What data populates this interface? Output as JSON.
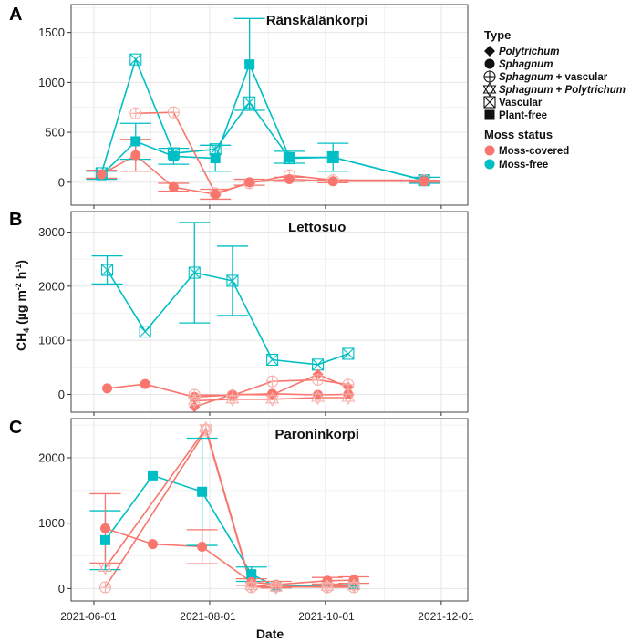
{
  "figure": {
    "ylabel_main": "CH",
    "ylabel_sub": "4",
    "ylabel_rest": " (µg m",
    "ylabel_exp1": "-2",
    "ylabel_mid": " h",
    "ylabel_exp2": "-1",
    "ylabel_close": ")",
    "xlabel": "Date",
    "x_ticks": [
      "2021-06-01",
      "2021-08-01",
      "2021-10-01",
      "2021-12-01"
    ]
  },
  "legend": {
    "type_title": "Type",
    "type_items": [
      {
        "id": "polytrichum",
        "parts": [
          {
            "t": "Polytrichum",
            "i": true
          }
        ]
      },
      {
        "id": "sphagnum",
        "parts": [
          {
            "t": "Sphagnum",
            "i": true
          }
        ]
      },
      {
        "id": "sphagnum-vascular",
        "parts": [
          {
            "t": "Sphagnum",
            "i": true
          },
          {
            "t": " + vascular",
            "i": false
          }
        ]
      },
      {
        "id": "sphagnum-polytrichum",
        "parts": [
          {
            "t": "Sphagnum",
            "i": true
          },
          {
            "t": " + ",
            "i": false
          },
          {
            "t": "Polytrichum",
            "i": true
          }
        ]
      },
      {
        "id": "vascular",
        "parts": [
          {
            "t": "Vascular",
            "i": false
          }
        ]
      },
      {
        "id": "plant-free",
        "parts": [
          {
            "t": "Plant-free",
            "i": false
          }
        ]
      }
    ],
    "moss_title": "Moss status",
    "moss_items": [
      {
        "label": "Moss-covered",
        "color": "#F8766D"
      },
      {
        "label": "Moss-free",
        "color": "#00BFC4"
      }
    ]
  },
  "colors": {
    "moss_covered": "#F8766D",
    "moss_free": "#00BFC4",
    "light_covered": "#F6B0AA",
    "light_free": "#7FD9DC"
  },
  "chart_data": [
    {
      "type": "line",
      "panel": "A",
      "title": "Ränskälänkorpi",
      "xlim": [
        "2021-05-20",
        "2021-12-15"
      ],
      "ylim": [
        -230,
        1780
      ],
      "y_ticks": [
        0,
        500,
        1000,
        1500
      ],
      "series": [
        {
          "type": "vascular",
          "status": "Moss-free",
          "points": [
            {
              "x": "2021-06-05",
              "y": 90
            },
            {
              "x": "2021-06-23",
              "y": 1230
            },
            {
              "x": "2021-07-13",
              "y": 290
            },
            {
              "x": "2021-08-04",
              "y": 330
            },
            {
              "x": "2021-08-22",
              "y": 800
            },
            {
              "x": "2021-09-12",
              "y": 240
            },
            {
              "x": "2021-10-05",
              "y": 250
            },
            {
              "x": "2021-11-22",
              "y": 20
            }
          ]
        },
        {
          "type": "plant-free",
          "status": "Moss-free",
          "points": [
            {
              "x": "2021-06-05",
              "y": 70,
              "err": 40
            },
            {
              "x": "2021-06-23",
              "y": 410,
              "err": 180
            },
            {
              "x": "2021-07-13",
              "y": 260,
              "err": 80
            },
            {
              "x": "2021-08-04",
              "y": 240,
              "err": 130
            },
            {
              "x": "2021-08-22",
              "y": 1180,
              "err": 460
            },
            {
              "x": "2021-09-12",
              "y": 250,
              "err": 60
            },
            {
              "x": "2021-10-05",
              "y": 250,
              "err": 140
            },
            {
              "x": "2021-11-22",
              "y": 20,
              "err": 30
            }
          ]
        },
        {
          "type": "sphagnum-vascular",
          "status": "Moss-covered",
          "points": [
            {
              "x": "2021-06-23",
              "y": 690
            },
            {
              "x": "2021-07-13",
              "y": 700
            },
            {
              "x": "2021-08-04",
              "y": -110
            },
            {
              "x": "2021-08-22",
              "y": -10
            },
            {
              "x": "2021-09-12",
              "y": 70
            },
            {
              "x": "2021-10-05",
              "y": 20
            },
            {
              "x": "2021-11-22",
              "y": 20
            }
          ]
        },
        {
          "type": "sphagnum",
          "status": "Moss-covered",
          "points": [
            {
              "x": "2021-06-05",
              "y": 80,
              "err": 40
            },
            {
              "x": "2021-06-23",
              "y": 270,
              "err": 160
            },
            {
              "x": "2021-07-13",
              "y": -50,
              "err": 40
            },
            {
              "x": "2021-08-04",
              "y": -120,
              "err": 50
            },
            {
              "x": "2021-08-22",
              "y": 0,
              "err": 30
            },
            {
              "x": "2021-09-12",
              "y": 30,
              "err": 20
            },
            {
              "x": "2021-10-05",
              "y": 10,
              "err": 15
            },
            {
              "x": "2021-11-22",
              "y": 10,
              "err": 10
            }
          ]
        }
      ]
    },
    {
      "type": "line",
      "panel": "B",
      "title": "Lettosuo",
      "xlim": [
        "2021-05-20",
        "2021-12-15"
      ],
      "ylim": [
        -330,
        3380
      ],
      "y_ticks": [
        0,
        1000,
        2000,
        3000
      ],
      "series": [
        {
          "type": "vascular",
          "status": "Moss-free",
          "points": [
            {
              "x": "2021-06-08",
              "y": 2300,
              "err": 260
            },
            {
              "x": "2021-06-28",
              "y": 1160
            },
            {
              "x": "2021-07-24",
              "y": 2250,
              "err": 930
            },
            {
              "x": "2021-08-13",
              "y": 2100,
              "err": 640
            },
            {
              "x": "2021-09-03",
              "y": 640
            },
            {
              "x": "2021-09-27",
              "y": 550
            },
            {
              "x": "2021-10-13",
              "y": 750
            }
          ]
        },
        {
          "type": "sphagnum",
          "status": "Moss-covered",
          "points": [
            {
              "x": "2021-06-08",
              "y": 110
            },
            {
              "x": "2021-06-28",
              "y": 190
            },
            {
              "x": "2021-07-24",
              "y": -50
            },
            {
              "x": "2021-08-13",
              "y": -10
            },
            {
              "x": "2021-09-03",
              "y": 10
            },
            {
              "x": "2021-09-27",
              "y": -10
            },
            {
              "x": "2021-10-13",
              "y": 0
            }
          ]
        },
        {
          "type": "polytrichum",
          "status": "Moss-covered",
          "points": [
            {
              "x": "2021-07-24",
              "y": -230
            },
            {
              "x": "2021-08-13",
              "y": 0
            },
            {
              "x": "2021-09-03",
              "y": -10
            },
            {
              "x": "2021-09-27",
              "y": 370
            },
            {
              "x": "2021-10-13",
              "y": 130
            }
          ]
        },
        {
          "type": "sphagnum-vascular",
          "status": "Moss-covered",
          "points": [
            {
              "x": "2021-07-24",
              "y": -10
            },
            {
              "x": "2021-08-13",
              "y": -20
            },
            {
              "x": "2021-09-03",
              "y": 240
            },
            {
              "x": "2021-09-27",
              "y": 270
            },
            {
              "x": "2021-10-13",
              "y": 180
            }
          ]
        },
        {
          "type": "sphagnum-polytrichum",
          "status": "Moss-covered",
          "points": [
            {
              "x": "2021-07-24",
              "y": -120
            },
            {
              "x": "2021-08-13",
              "y": -90
            },
            {
              "x": "2021-09-03",
              "y": -90
            },
            {
              "x": "2021-09-27",
              "y": -60
            },
            {
              "x": "2021-10-13",
              "y": -60
            }
          ]
        }
      ]
    },
    {
      "type": "line",
      "panel": "C",
      "title": "Paroninkorpi",
      "xlim": [
        "2021-05-20",
        "2021-12-15"
      ],
      "ylim": [
        -190,
        2600
      ],
      "y_ticks": [
        0,
        1000,
        2000
      ],
      "series": [
        {
          "type": "plant-free",
          "status": "Moss-free",
          "points": [
            {
              "x": "2021-06-07",
              "y": 740,
              "err": 450
            },
            {
              "x": "2021-07-02",
              "y": 1730
            },
            {
              "x": "2021-07-28",
              "y": 1480,
              "err": 820
            },
            {
              "x": "2021-08-23",
              "y": 220,
              "err": 110
            },
            {
              "x": "2021-09-05",
              "y": 30
            },
            {
              "x": "2021-10-16",
              "y": 60
            }
          ]
        },
        {
          "type": "sphagnum",
          "status": "Moss-covered",
          "points": [
            {
              "x": "2021-06-07",
              "y": 920,
              "err": 530
            },
            {
              "x": "2021-07-02",
              "y": 680
            },
            {
              "x": "2021-07-28",
              "y": 640,
              "err": 260
            },
            {
              "x": "2021-08-23",
              "y": 100,
              "err": 50
            },
            {
              "x": "2021-09-05",
              "y": 60,
              "err": 50
            },
            {
              "x": "2021-10-02",
              "y": 120,
              "err": 50
            },
            {
              "x": "2021-10-16",
              "y": 130,
              "err": 50
            }
          ]
        },
        {
          "type": "sphagnum-vascular",
          "status": "Moss-covered",
          "points": [
            {
              "x": "2021-06-07",
              "y": 20
            },
            {
              "x": "2021-07-30",
              "y": 2420
            },
            {
              "x": "2021-08-23",
              "y": 20
            },
            {
              "x": "2021-09-05",
              "y": 30
            },
            {
              "x": "2021-10-02",
              "y": 20
            },
            {
              "x": "2021-10-16",
              "y": 20
            }
          ]
        },
        {
          "type": "sphagnum-polytrichum",
          "status": "Moss-covered",
          "points": [
            {
              "x": "2021-06-07",
              "y": 320
            },
            {
              "x": "2021-07-30",
              "y": 2450
            },
            {
              "x": "2021-08-23",
              "y": 40
            },
            {
              "x": "2021-09-05",
              "y": 20
            },
            {
              "x": "2021-10-02",
              "y": 30
            },
            {
              "x": "2021-10-16",
              "y": 40
            }
          ]
        }
      ]
    }
  ]
}
